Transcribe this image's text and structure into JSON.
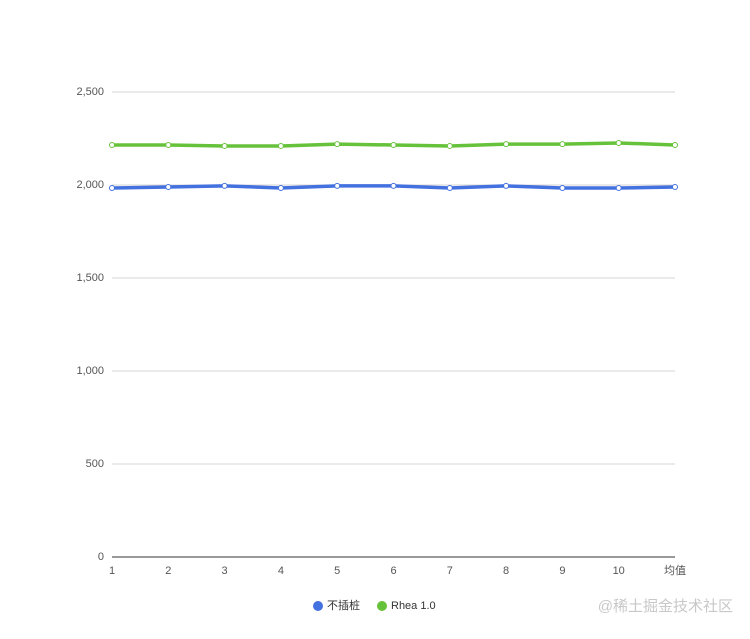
{
  "chart_data": {
    "type": "line",
    "categories": [
      "1",
      "2",
      "3",
      "4",
      "5",
      "6",
      "7",
      "8",
      "9",
      "10",
      "均值"
    ],
    "series": [
      {
        "name": "不插桩",
        "color": "#4371e0",
        "values": [
          1984,
          1989,
          1995,
          1984,
          1995,
          1995,
          1984,
          1995,
          1984,
          1984,
          1989
        ]
      },
      {
        "name": "Rhea 1.0",
        "color": "#66c23a",
        "values": [
          2215,
          2215,
          2210,
          2210,
          2220,
          2215,
          2210,
          2220,
          2220,
          2226,
          2215
        ]
      }
    ],
    "ylim": [
      0,
      2500
    ],
    "yticks": [
      0,
      500,
      {
        "value": 1000,
        "label": "1,000"
      },
      {
        "value": 1500,
        "label": "1,500"
      },
      {
        "value": 2000,
        "label": "2,000"
      },
      {
        "value": 2500,
        "label": "2,500"
      }
    ],
    "grid": true,
    "legend": "bottom",
    "watermark": "@稀土掘金技术社区"
  }
}
